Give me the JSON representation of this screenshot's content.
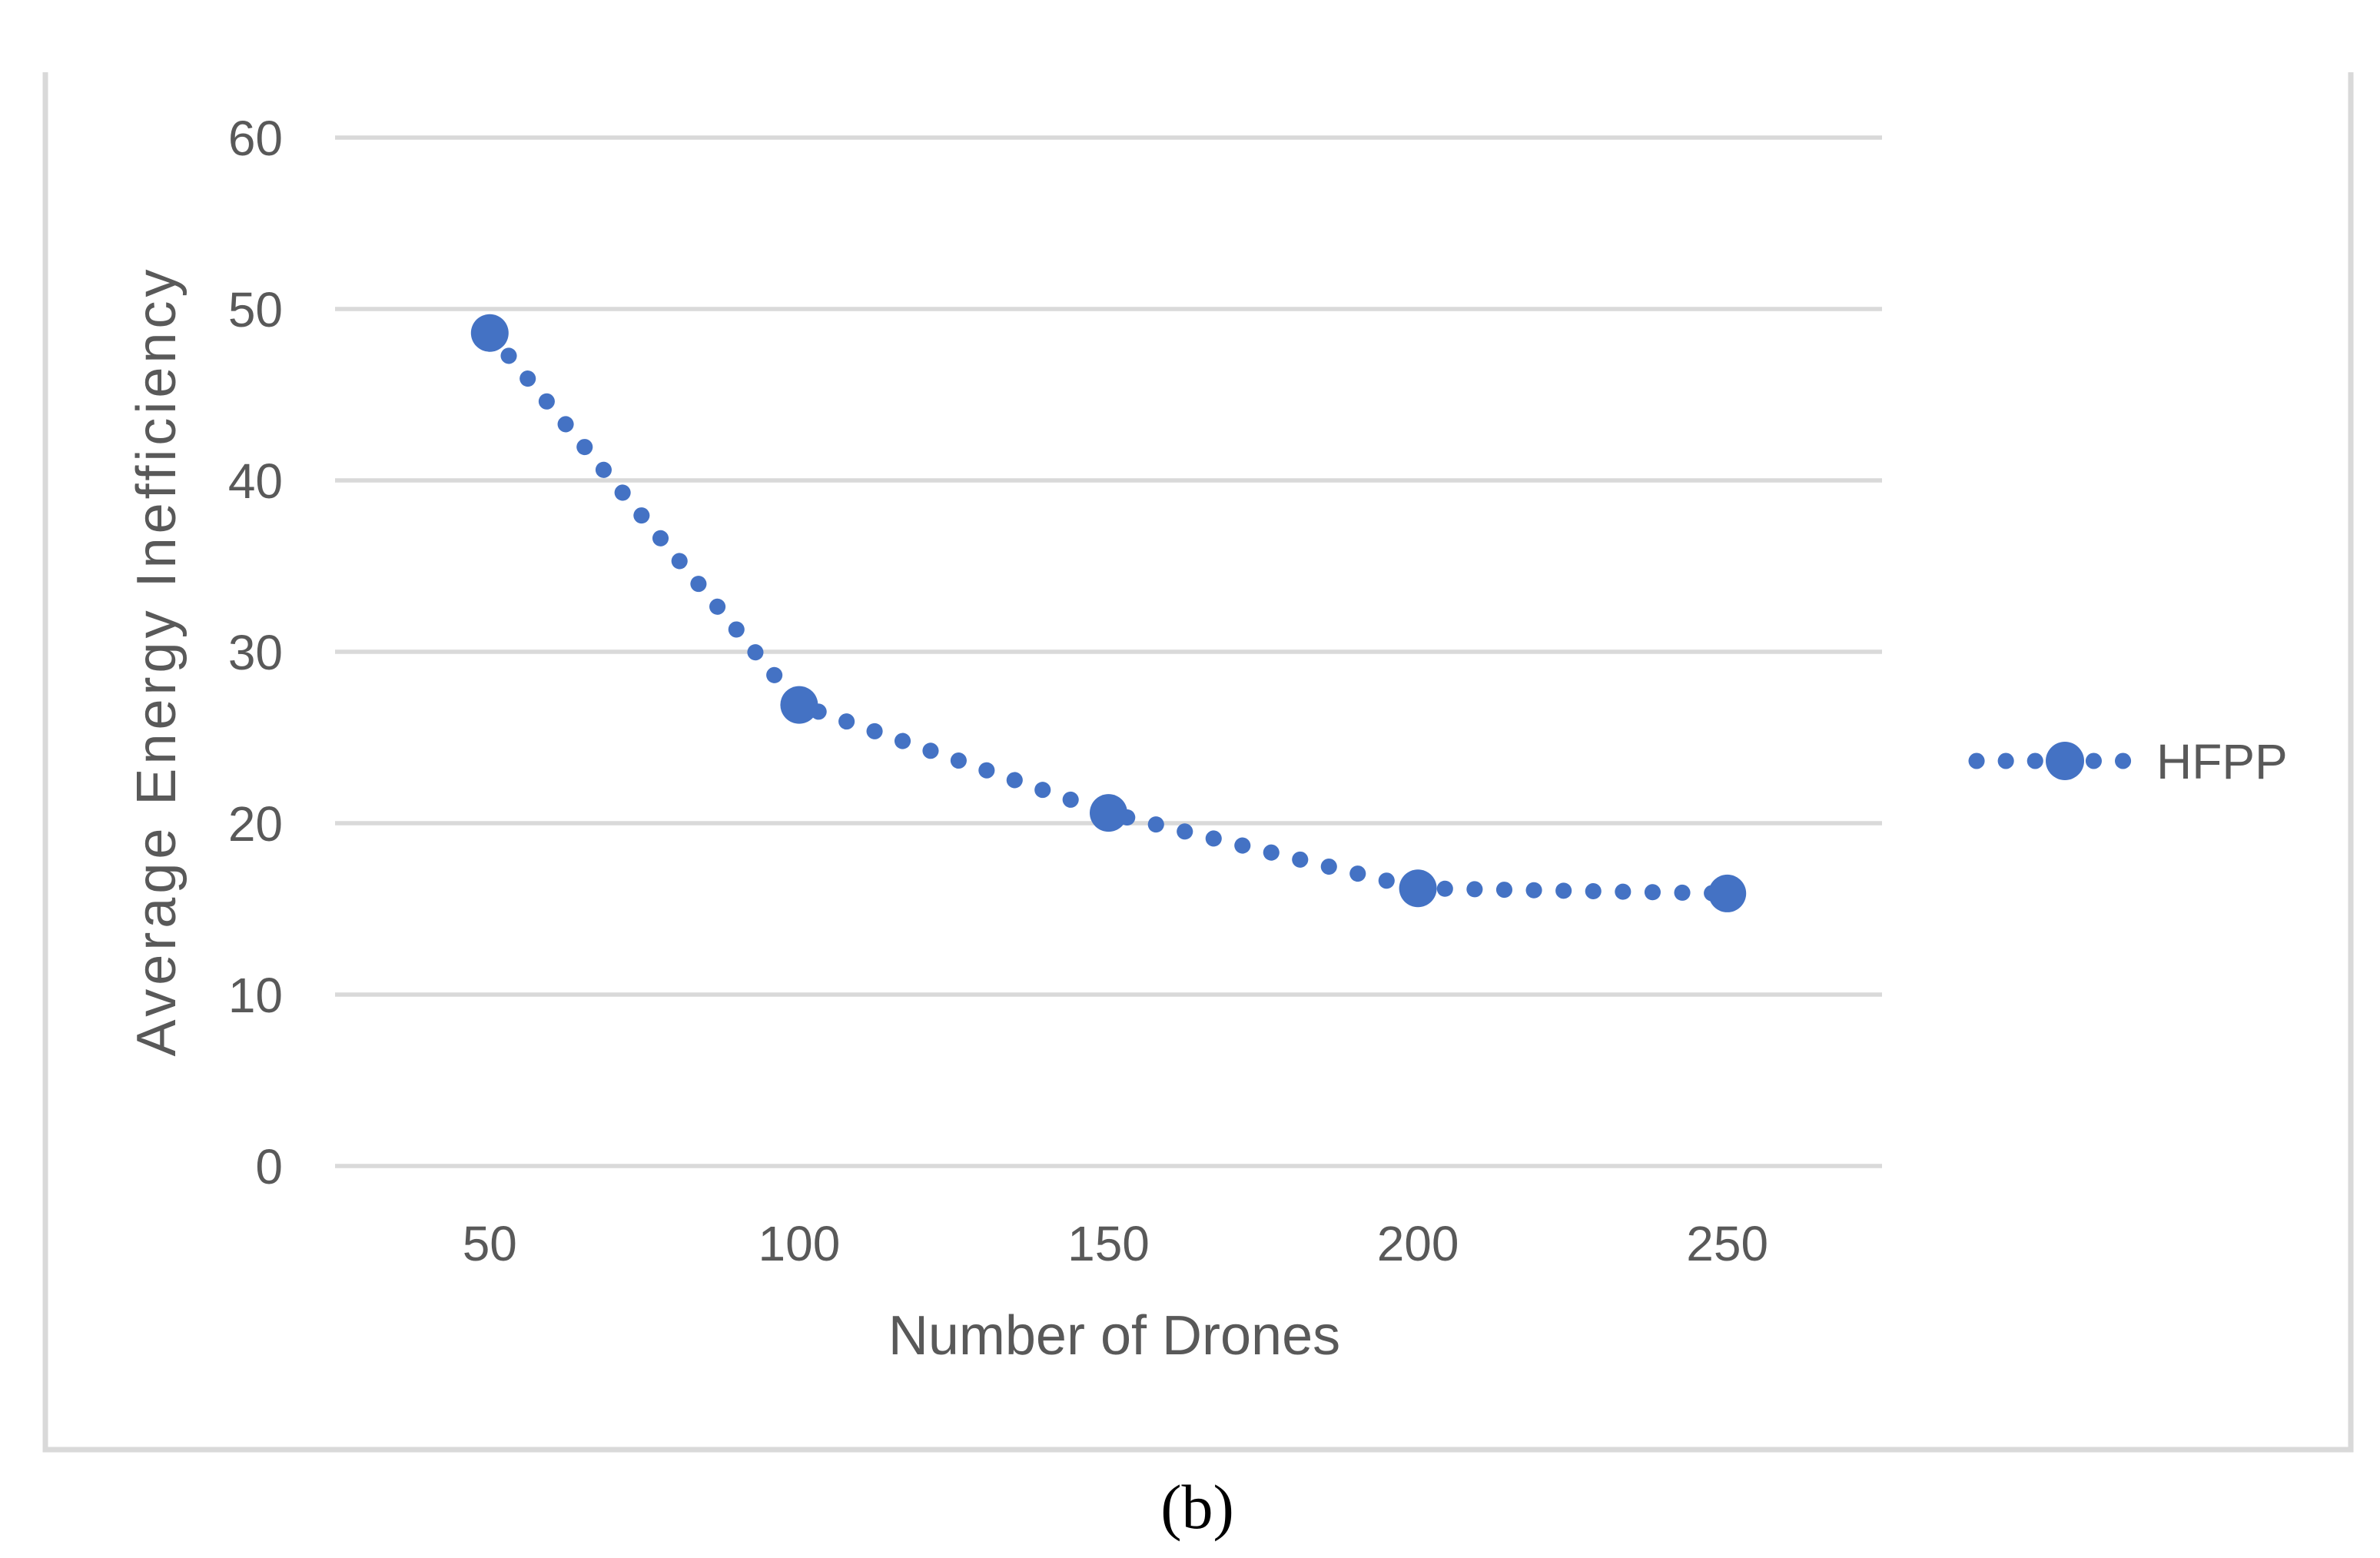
{
  "page": {
    "background": "#ffffff",
    "caption": "(b)"
  },
  "chart": {
    "frame_border_color": "#d9d9d9",
    "plot_background": "#ffffff",
    "colors": {
      "series": "#4472c4",
      "gridline": "#d9d9d9",
      "tick_text": "#595959",
      "axis_title_text": "#595959",
      "legend_text": "#595959",
      "caption_text": "#000000"
    },
    "y_axis": {
      "tick_labels": [
        "0",
        "10",
        "20",
        "30",
        "40",
        "50",
        "60"
      ]
    },
    "x_axis": {
      "tick_labels": [
        "50",
        "100",
        "150",
        "200",
        "250"
      ]
    }
  },
  "chart_data": {
    "type": "line",
    "categories": [
      50,
      100,
      150,
      200,
      250
    ],
    "series": [
      {
        "name": "HFPP",
        "values": [
          48.6,
          26.9,
          20.6,
          16.2,
          15.9
        ]
      }
    ],
    "title": "",
    "xlabel": "Number of Drones",
    "ylabel": "Average Energy Inefficiency",
    "ylim": [
      0,
      60
    ],
    "y_tick_step": 10,
    "grid": true,
    "legend_position": "right",
    "line_style": "dotted",
    "marker": "circle"
  }
}
